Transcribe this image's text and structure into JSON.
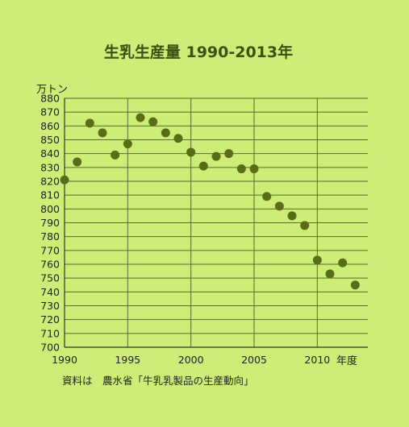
{
  "chart_data": {
    "type": "scatter",
    "title": "生乳生産量 1990-2013年",
    "ylabel": "万トン",
    "xlabel": "年度",
    "source_note": "資料は　農水省「牛乳乳製品の生産動向」",
    "x_ticks": [
      "1990",
      "1995",
      "2000",
      "2005",
      "2010"
    ],
    "y_ticks": [
      "700",
      "710",
      "720",
      "730",
      "740",
      "750",
      "760",
      "770",
      "780",
      "790",
      "800",
      "810",
      "820",
      "830",
      "840",
      "850",
      "860",
      "870",
      "880"
    ],
    "xlim": [
      1990,
      2014
    ],
    "ylim": [
      700,
      880
    ],
    "grid": true,
    "series": [
      {
        "x": [
          1990,
          1991,
          1992,
          1993,
          1994,
          1995,
          1996,
          1997,
          1998,
          1999,
          2000,
          2001,
          2002,
          2003,
          2004,
          2005,
          2006,
          2007,
          2008,
          2009,
          2010,
          2011,
          2012,
          2013
        ],
        "y": [
          821,
          834,
          862,
          855,
          839,
          847,
          866,
          863,
          855,
          851,
          841,
          831,
          838,
          840,
          829,
          829,
          809,
          802,
          795,
          788,
          763,
          753,
          761,
          745
        ]
      }
    ],
    "colors": {
      "background": "#ccee77",
      "axis": "#333333",
      "grid": "#556b2f",
      "marker": "#5c6b16",
      "title": "#3a5212",
      "text": "#222222"
    }
  }
}
